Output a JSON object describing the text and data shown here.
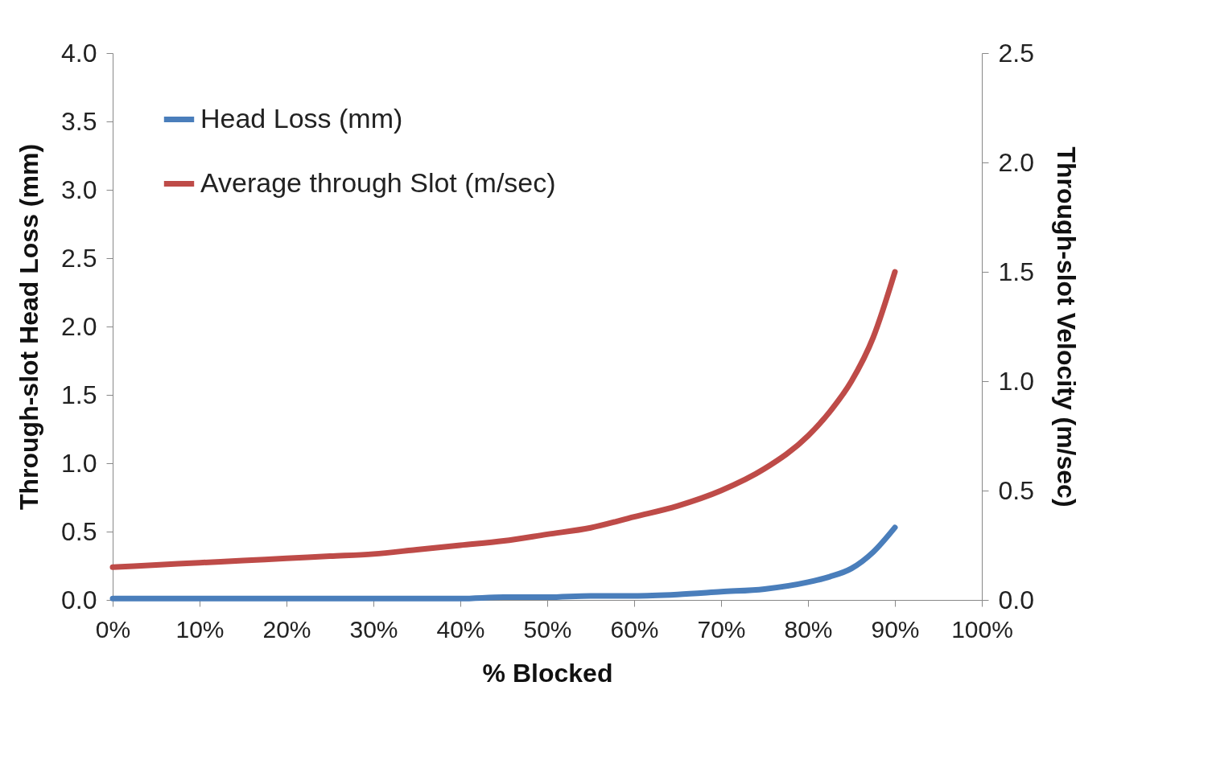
{
  "chart_data": {
    "type": "line",
    "xlabel": "% Blocked",
    "ylabel": "Through-slot  Head Loss (mm)",
    "y2label": "Through-slot  Velocity (m/sec)",
    "x": [
      0,
      5,
      10,
      15,
      20,
      25,
      30,
      35,
      40,
      45,
      50,
      55,
      60,
      65,
      70,
      75,
      80,
      82.5,
      85,
      87.5,
      90
    ],
    "series": [
      {
        "name": "Head Loss (mm)",
        "color": "#4a7ebb",
        "values": [
          0.01,
          0.01,
          0.01,
          0.01,
          0.01,
          0.01,
          0.01,
          0.01,
          0.01,
          0.02,
          0.02,
          0.03,
          0.03,
          0.04,
          0.06,
          0.08,
          0.13,
          0.17,
          0.23,
          0.35,
          0.53
        ]
      },
      {
        "name": "Average through Slot (m/sec)",
        "color": "#be4b48",
        "axis": "y2",
        "values": [
          0.15,
          0.16,
          0.17,
          0.18,
          0.19,
          0.2,
          0.21,
          0.23,
          0.25,
          0.27,
          0.3,
          0.33,
          0.38,
          0.43,
          0.5,
          0.6,
          0.75,
          0.86,
          1.0,
          1.2,
          1.5
        ]
      }
    ],
    "xlim": [
      0,
      100
    ],
    "xticks": [
      {
        "value": 0,
        "label": "0%"
      },
      {
        "value": 10,
        "label": "10%"
      },
      {
        "value": 20,
        "label": "20%"
      },
      {
        "value": 30,
        "label": "30%"
      },
      {
        "value": 40,
        "label": "40%"
      },
      {
        "value": 50,
        "label": "50%"
      },
      {
        "value": 60,
        "label": "60%"
      },
      {
        "value": 70,
        "label": "70%"
      },
      {
        "value": 80,
        "label": "80%"
      },
      {
        "value": 90,
        "label": "90%"
      },
      {
        "value": 100,
        "label": "100%"
      }
    ],
    "ylim": [
      0,
      4
    ],
    "yticks": [
      {
        "value": 0,
        "label": "0.0"
      },
      0.5,
      {
        "value": 1,
        "label": "1.0"
      },
      1.5,
      {
        "value": 2,
        "label": "2.0"
      },
      2.5,
      {
        "value": 3,
        "label": "3.0"
      },
      3.5,
      {
        "value": 4,
        "label": "4.0"
      }
    ],
    "y2lim": [
      0,
      2.5
    ],
    "y2ticks": [
      {
        "value": 0,
        "label": "0.0"
      },
      0.5,
      {
        "value": 1,
        "label": "1.0"
      },
      1.5,
      {
        "value": 2,
        "label": "2.0"
      },
      2.5
    ],
    "grid": false,
    "legend": "top left",
    "marker": "none",
    "line_style": "solid"
  }
}
